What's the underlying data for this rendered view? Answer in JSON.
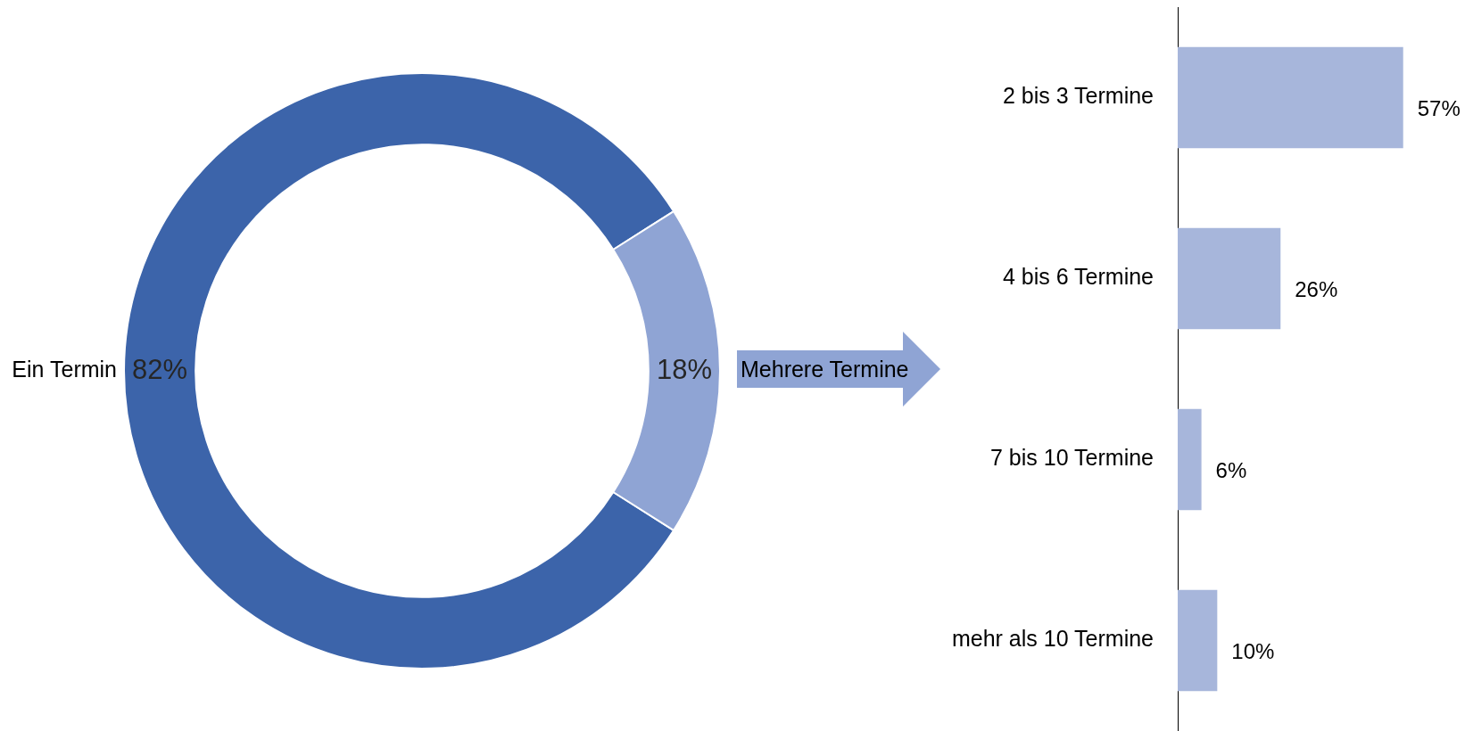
{
  "chart_data": [
    {
      "type": "donut",
      "categories": [
        "Ein Termin",
        "Mehrere Termine"
      ],
      "values": [
        82,
        18
      ],
      "colors": [
        "#3c64aa",
        "#8fa4d4"
      ],
      "value_labels": [
        "82%",
        "18%"
      ]
    },
    {
      "type": "bar",
      "orientation": "horizontal",
      "categories": [
        "2 bis 3 Termine",
        "4 bis 6 Termine",
        "7 bis 10 Termine",
        "mehr als 10 Termine"
      ],
      "values": [
        57,
        26,
        6,
        10
      ],
      "color": "#a7b6db",
      "value_labels": [
        "57%",
        "26%",
        "6%",
        "10%"
      ]
    }
  ]
}
